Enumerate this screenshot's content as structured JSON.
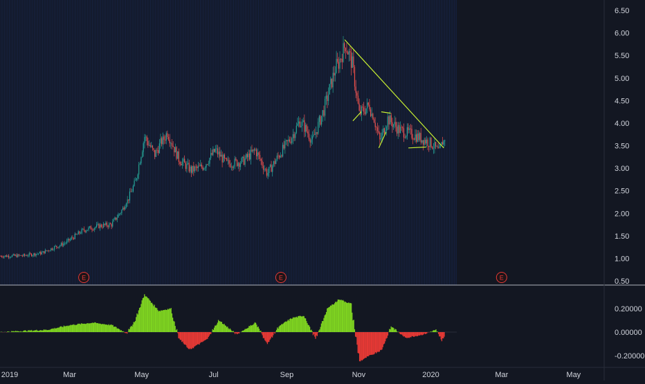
{
  "chart_data": [
    {
      "type": "candlestick",
      "title": "",
      "x_range": [
        "2019-01-01",
        "2020-05-31"
      ],
      "ylim": [
        0.5,
        6.5
      ],
      "y_ticks": [
        "6.50",
        "6.00",
        "5.50",
        "5.00",
        "4.50",
        "4.00",
        "3.50",
        "3.00",
        "2.50",
        "2.00",
        "1.50",
        "1.00",
        "0.50"
      ],
      "price_path": [
        {
          "x": "2019-01-01",
          "y": 1.05
        },
        {
          "x": "2019-01-20",
          "y": 1.06
        },
        {
          "x": "2019-02-05",
          "y": 1.12
        },
        {
          "x": "2019-02-25",
          "y": 1.35
        },
        {
          "x": "2019-03-12",
          "y": 1.62
        },
        {
          "x": "2019-03-25",
          "y": 1.72
        },
        {
          "x": "2019-04-05",
          "y": 1.75
        },
        {
          "x": "2019-04-15",
          "y": 2.1
        },
        {
          "x": "2019-04-25",
          "y": 2.7
        },
        {
          "x": "2019-05-03",
          "y": 3.7
        },
        {
          "x": "2019-05-12",
          "y": 3.3
        },
        {
          "x": "2019-05-22",
          "y": 3.8
        },
        {
          "x": "2019-06-01",
          "y": 3.2
        },
        {
          "x": "2019-06-12",
          "y": 2.95
        },
        {
          "x": "2019-06-22",
          "y": 3.05
        },
        {
          "x": "2019-07-02",
          "y": 3.4
        },
        {
          "x": "2019-07-12",
          "y": 3.1
        },
        {
          "x": "2019-07-25",
          "y": 3.15
        },
        {
          "x": "2019-08-05",
          "y": 3.4
        },
        {
          "x": "2019-08-15",
          "y": 2.9
        },
        {
          "x": "2019-08-25",
          "y": 3.3
        },
        {
          "x": "2019-09-05",
          "y": 3.7
        },
        {
          "x": "2019-09-12",
          "y": 4.05
        },
        {
          "x": "2019-09-22",
          "y": 3.6
        },
        {
          "x": "2019-10-02",
          "y": 4.3
        },
        {
          "x": "2019-10-12",
          "y": 5.2
        },
        {
          "x": "2019-10-20",
          "y": 5.75
        },
        {
          "x": "2019-10-26",
          "y": 5.3
        },
        {
          "x": "2019-11-01",
          "y": 4.2
        },
        {
          "x": "2019-11-10",
          "y": 4.4
        },
        {
          "x": "2019-11-18",
          "y": 3.6
        },
        {
          "x": "2019-11-25",
          "y": 4.1
        },
        {
          "x": "2019-12-05",
          "y": 3.85
        },
        {
          "x": "2019-12-20",
          "y": 3.7
        },
        {
          "x": "2020-01-01",
          "y": 3.55
        },
        {
          "x": "2020-01-08",
          "y": 3.35
        },
        {
          "x": "2020-01-13",
          "y": 3.75
        }
      ],
      "trendlines": [
        {
          "from": {
            "x": "2019-10-20",
            "y": 5.85
          },
          "to": {
            "x": "2020-01-12",
            "y": 3.45
          }
        },
        {
          "from": {
            "x": "2019-10-27",
            "y": 4.05
          },
          "to": {
            "x": "2019-11-03",
            "y": 4.25
          }
        },
        {
          "from": {
            "x": "2019-11-18",
            "y": 3.45
          },
          "to": {
            "x": "2019-11-24",
            "y": 3.8
          }
        },
        {
          "from": {
            "x": "2019-11-20",
            "y": 4.25
          },
          "to": {
            "x": "2019-11-28",
            "y": 4.22
          }
        },
        {
          "from": {
            "x": "2019-12-13",
            "y": 3.45
          },
          "to": {
            "x": "2019-12-28",
            "y": 3.47
          }
        }
      ],
      "earnings_markers": [
        {
          "x": "2019-03-13",
          "label": "E"
        },
        {
          "x": "2019-08-27",
          "label": "E"
        },
        {
          "x": "2020-03-01",
          "label": "E"
        }
      ]
    },
    {
      "type": "area",
      "title": "",
      "ylim": [
        -0.25,
        0.3
      ],
      "y_ticks": [
        "0.20000",
        "0.00000",
        "-0.20000"
      ],
      "oscillator": [
        {
          "x": "2019-01-01",
          "y": 0.0
        },
        {
          "x": "2019-01-20",
          "y": 0.01
        },
        {
          "x": "2019-02-10",
          "y": 0.02
        },
        {
          "x": "2019-03-01",
          "y": 0.06
        },
        {
          "x": "2019-03-20",
          "y": 0.08
        },
        {
          "x": "2019-04-05",
          "y": 0.06
        },
        {
          "x": "2019-04-18",
          "y": -0.01
        },
        {
          "x": "2019-04-25",
          "y": 0.1
        },
        {
          "x": "2019-05-03",
          "y": 0.32
        },
        {
          "x": "2019-05-15",
          "y": 0.18
        },
        {
          "x": "2019-05-25",
          "y": 0.2
        },
        {
          "x": "2019-06-01",
          "y": -0.05
        },
        {
          "x": "2019-06-10",
          "y": -0.15
        },
        {
          "x": "2019-06-25",
          "y": -0.06
        },
        {
          "x": "2019-07-05",
          "y": 0.1
        },
        {
          "x": "2019-07-20",
          "y": -0.02
        },
        {
          "x": "2019-08-05",
          "y": 0.08
        },
        {
          "x": "2019-08-15",
          "y": -0.1
        },
        {
          "x": "2019-08-25",
          "y": 0.05
        },
        {
          "x": "2019-09-05",
          "y": 0.12
        },
        {
          "x": "2019-09-15",
          "y": 0.14
        },
        {
          "x": "2019-09-25",
          "y": -0.06
        },
        {
          "x": "2019-10-05",
          "y": 0.2
        },
        {
          "x": "2019-10-15",
          "y": 0.28
        },
        {
          "x": "2019-10-25",
          "y": 0.24
        },
        {
          "x": "2019-11-01",
          "y": -0.25
        },
        {
          "x": "2019-11-10",
          "y": -0.2
        },
        {
          "x": "2019-11-20",
          "y": -0.15
        },
        {
          "x": "2019-11-28",
          "y": 0.05
        },
        {
          "x": "2019-12-10",
          "y": -0.05
        },
        {
          "x": "2019-12-25",
          "y": -0.02
        },
        {
          "x": "2020-01-05",
          "y": 0.02
        },
        {
          "x": "2020-01-10",
          "y": -0.08
        },
        {
          "x": "2020-01-13",
          "y": -0.01
        }
      ]
    }
  ],
  "time_axis": {
    "labels": [
      "2019",
      "Mar",
      "May",
      "Jul",
      "Sep",
      "Nov",
      "2020",
      "Mar",
      "May"
    ]
  },
  "colors": {
    "background": "#131722",
    "candle_up": "#26a69a",
    "candle_down": "#ef5350",
    "trendline": "#c8f032",
    "osc_positive": "#7ed321",
    "osc_negative": "#e53935",
    "axis_text": "#d1d4dc",
    "earnings_marker": "#e53935",
    "grid_stripe": "#2962ff"
  }
}
